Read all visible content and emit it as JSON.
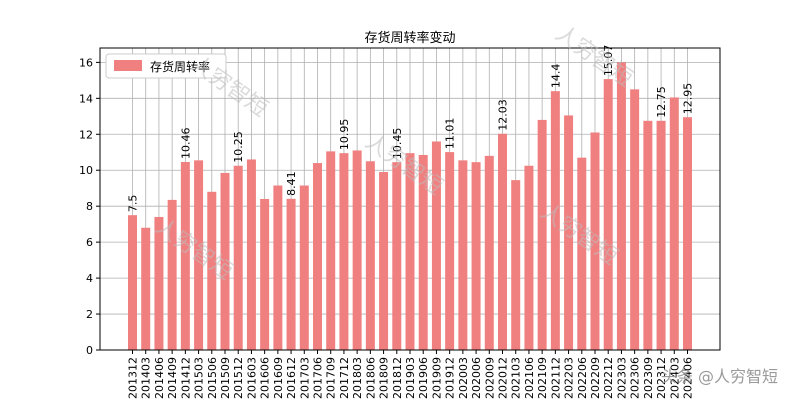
{
  "chart_data": {
    "type": "bar",
    "title": "存货周转率变动",
    "legend": {
      "label": "存货周转率",
      "placement": "top-left"
    },
    "xlabel": "",
    "ylabel": "",
    "ylim": [
      0,
      16.8
    ],
    "yticks": [
      0,
      2,
      4,
      6,
      8,
      10,
      12,
      14,
      16
    ],
    "grid": true,
    "bar_color": "#f08080",
    "categories": [
      "201312",
      "201403",
      "201406",
      "201409",
      "201412",
      "201503",
      "201506",
      "201509",
      "201512",
      "201603",
      "201606",
      "201609",
      "201612",
      "201703",
      "201706",
      "201709",
      "201712",
      "201803",
      "201806",
      "201809",
      "201812",
      "201903",
      "201906",
      "201909",
      "201912",
      "202003",
      "202006",
      "202009",
      "202012",
      "202103",
      "202106",
      "202109",
      "202112",
      "202203",
      "202206",
      "202209",
      "202212",
      "202303",
      "202306",
      "202309",
      "202312",
      "202403",
      "202406"
    ],
    "values": [
      7.5,
      6.8,
      7.4,
      8.35,
      10.46,
      10.55,
      8.8,
      9.85,
      10.25,
      10.6,
      8.4,
      9.15,
      8.41,
      9.15,
      10.4,
      11.05,
      10.95,
      11.1,
      10.5,
      9.9,
      10.45,
      10.95,
      10.85,
      11.6,
      11.01,
      10.55,
      10.45,
      10.8,
      12.03,
      9.45,
      10.25,
      12.8,
      14.4,
      13.05,
      10.7,
      12.1,
      15.07,
      16.0,
      14.5,
      12.75,
      12.75,
      14.05,
      12.95
    ],
    "data_labels": [
      {
        "index": 0,
        "text": "7.5"
      },
      {
        "index": 4,
        "text": "10.46"
      },
      {
        "index": 8,
        "text": "10.25"
      },
      {
        "index": 12,
        "text": "8.41"
      },
      {
        "index": 16,
        "text": "10.95"
      },
      {
        "index": 20,
        "text": "10.45"
      },
      {
        "index": 24,
        "text": "11.01"
      },
      {
        "index": 28,
        "text": "12.03"
      },
      {
        "index": 32,
        "text": "14.4"
      },
      {
        "index": 36,
        "text": "15.07"
      },
      {
        "index": 40,
        "text": "12.75"
      },
      {
        "index": 42,
        "text": "12.95"
      }
    ]
  },
  "watermark": {
    "text": "人穷智短",
    "corner_text": "头条 @人穷智短"
  }
}
